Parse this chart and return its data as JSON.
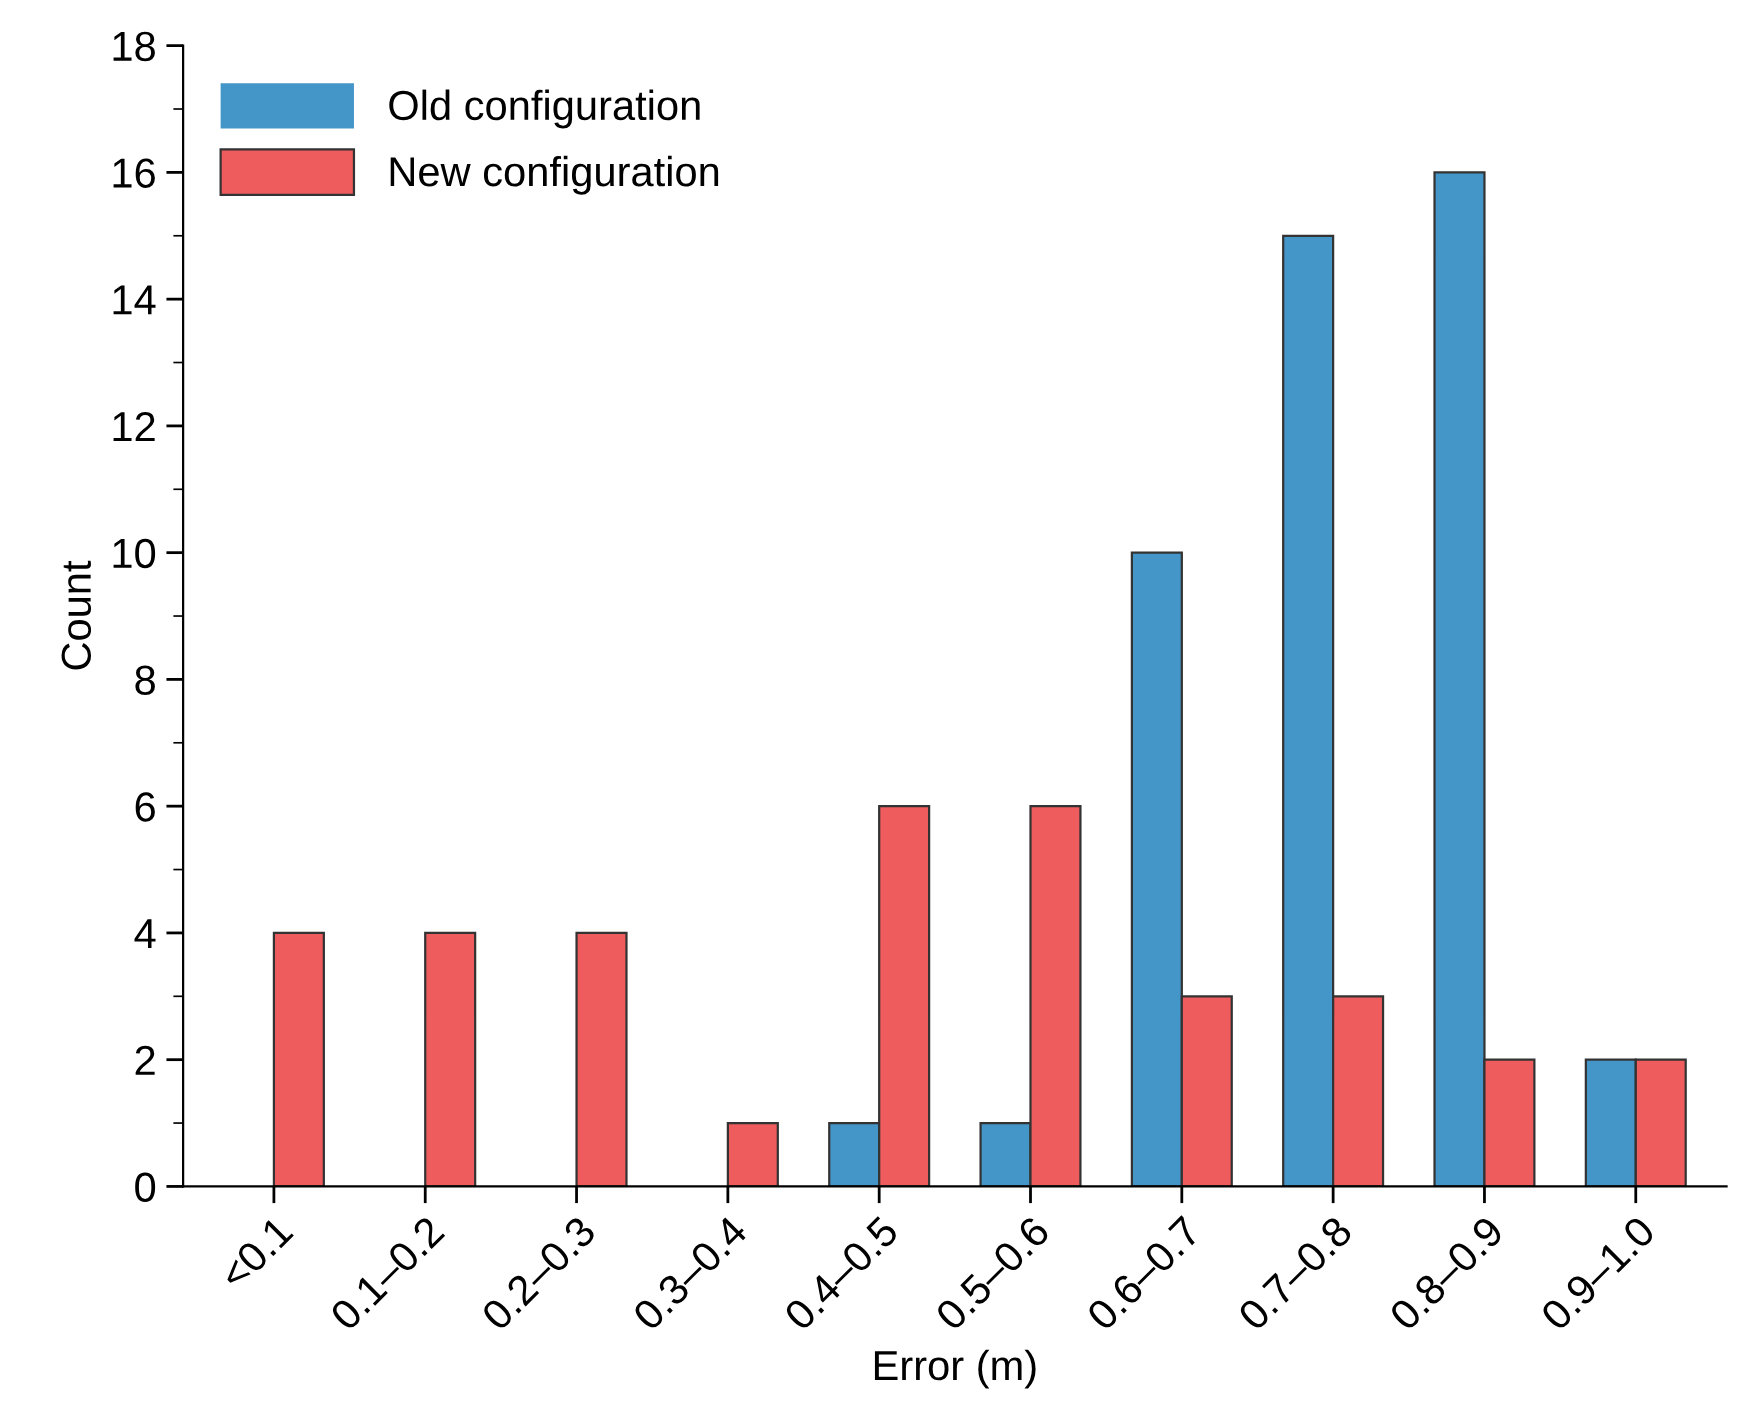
{
  "chart_data": {
    "type": "bar",
    "xlabel": "Error (m)",
    "ylabel": "Count",
    "categories": [
      "<0.1",
      "0.1–0.2",
      "0.2–0.3",
      "0.3–0.4",
      "0.4–0.5",
      "0.5–0.6",
      "0.6–0.7",
      "0.7–0.8",
      "0.8–0.9",
      "0.9–1.0"
    ],
    "series": [
      {
        "name": "Old configuration",
        "color": "#4596c8",
        "values": [
          0,
          0,
          0,
          0,
          1,
          1,
          10,
          15,
          16,
          2
        ]
      },
      {
        "name": "New configuration",
        "color": "#ee5c5e",
        "values": [
          4,
          4,
          4,
          1,
          6,
          6,
          3,
          3,
          2,
          2
        ]
      }
    ],
    "ylim": [
      0,
      18
    ],
    "yticks": [
      0,
      2,
      4,
      6,
      8,
      10,
      12,
      14,
      16,
      18
    ],
    "grid": false,
    "legend": "top left"
  }
}
